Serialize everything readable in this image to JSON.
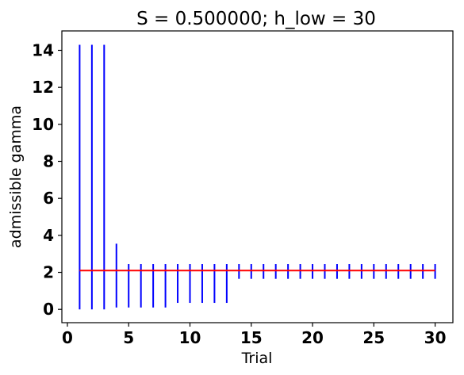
{
  "chart_data": {
    "type": "errorbar",
    "title": "S = 0.500000; h_low = 30",
    "xlabel": "Trial",
    "ylabel": "admissible gamma",
    "xlim": [
      -0.45,
      31.45
    ],
    "ylim": [
      -0.72,
      15.05
    ],
    "xticks": [
      0,
      5,
      10,
      15,
      20,
      25,
      30
    ],
    "yticks": [
      0,
      2,
      4,
      6,
      8,
      10,
      12,
      14
    ],
    "grid": false,
    "interval_color": "#0000ff",
    "reference_color": "#ff0000",
    "reference_line": {
      "y": 2.1,
      "x_start": 1,
      "x_end": 30
    },
    "intervals": [
      {
        "x": 1,
        "low": 0.0,
        "high": 14.3
      },
      {
        "x": 2,
        "low": 0.0,
        "high": 14.3
      },
      {
        "x": 3,
        "low": 0.0,
        "high": 14.3
      },
      {
        "x": 4,
        "low": 0.1,
        "high": 3.55
      },
      {
        "x": 5,
        "low": 0.1,
        "high": 2.45
      },
      {
        "x": 6,
        "low": 0.1,
        "high": 2.45
      },
      {
        "x": 7,
        "low": 0.1,
        "high": 2.45
      },
      {
        "x": 8,
        "low": 0.1,
        "high": 2.45
      },
      {
        "x": 9,
        "low": 0.35,
        "high": 2.45
      },
      {
        "x": 10,
        "low": 0.35,
        "high": 2.45
      },
      {
        "x": 11,
        "low": 0.35,
        "high": 2.45
      },
      {
        "x": 12,
        "low": 0.35,
        "high": 2.45
      },
      {
        "x": 13,
        "low": 0.35,
        "high": 2.45
      },
      {
        "x": 14,
        "low": 1.65,
        "high": 2.45
      },
      {
        "x": 15,
        "low": 1.65,
        "high": 2.45
      },
      {
        "x": 16,
        "low": 1.65,
        "high": 2.45
      },
      {
        "x": 17,
        "low": 1.65,
        "high": 2.45
      },
      {
        "x": 18,
        "low": 1.65,
        "high": 2.45
      },
      {
        "x": 19,
        "low": 1.65,
        "high": 2.45
      },
      {
        "x": 20,
        "low": 1.65,
        "high": 2.45
      },
      {
        "x": 21,
        "low": 1.65,
        "high": 2.45
      },
      {
        "x": 22,
        "low": 1.65,
        "high": 2.45
      },
      {
        "x": 23,
        "low": 1.65,
        "high": 2.45
      },
      {
        "x": 24,
        "low": 1.65,
        "high": 2.45
      },
      {
        "x": 25,
        "low": 1.65,
        "high": 2.45
      },
      {
        "x": 26,
        "low": 1.65,
        "high": 2.45
      },
      {
        "x": 27,
        "low": 1.65,
        "high": 2.45
      },
      {
        "x": 28,
        "low": 1.65,
        "high": 2.45
      },
      {
        "x": 29,
        "low": 1.65,
        "high": 2.45
      },
      {
        "x": 30,
        "low": 1.65,
        "high": 2.45
      }
    ]
  }
}
